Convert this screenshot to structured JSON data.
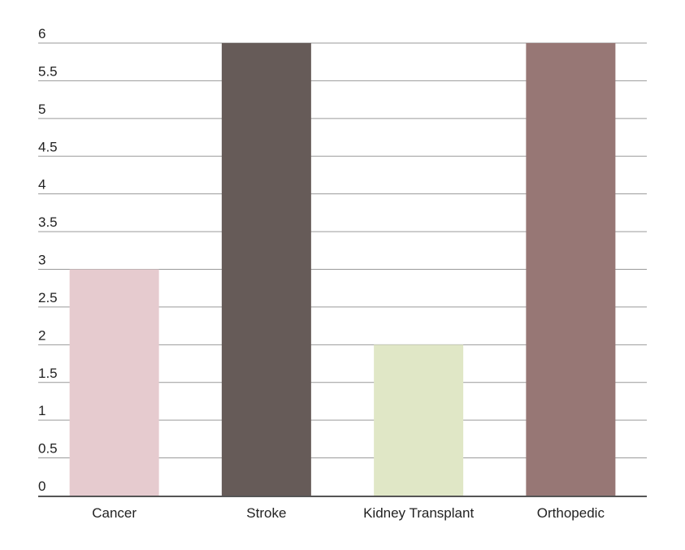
{
  "chart_data": {
    "type": "bar",
    "categories": [
      "Cancer",
      "Stroke",
      "Kidney Transplant",
      "Orthopedic"
    ],
    "values": [
      3,
      6,
      2,
      6
    ],
    "bar_colors": [
      "#e6cbcf",
      "#665b58",
      "#e0e7c6",
      "#977775"
    ],
    "ylim": [
      0,
      6
    ],
    "yticks": [
      0,
      0.5,
      1,
      1.5,
      2,
      2.5,
      3,
      3.5,
      4,
      4.5,
      5,
      5.5,
      6
    ],
    "ytick_labels": [
      "0",
      "0.5",
      "1",
      "1.5",
      "2",
      "2.5",
      "3",
      "3.5",
      "4",
      "4.5",
      "5",
      "5.5",
      "6"
    ],
    "grid": true,
    "grid_color": "#9a9a9a",
    "axis_color": "#555555",
    "title": "",
    "xlabel": "",
    "ylabel": ""
  }
}
